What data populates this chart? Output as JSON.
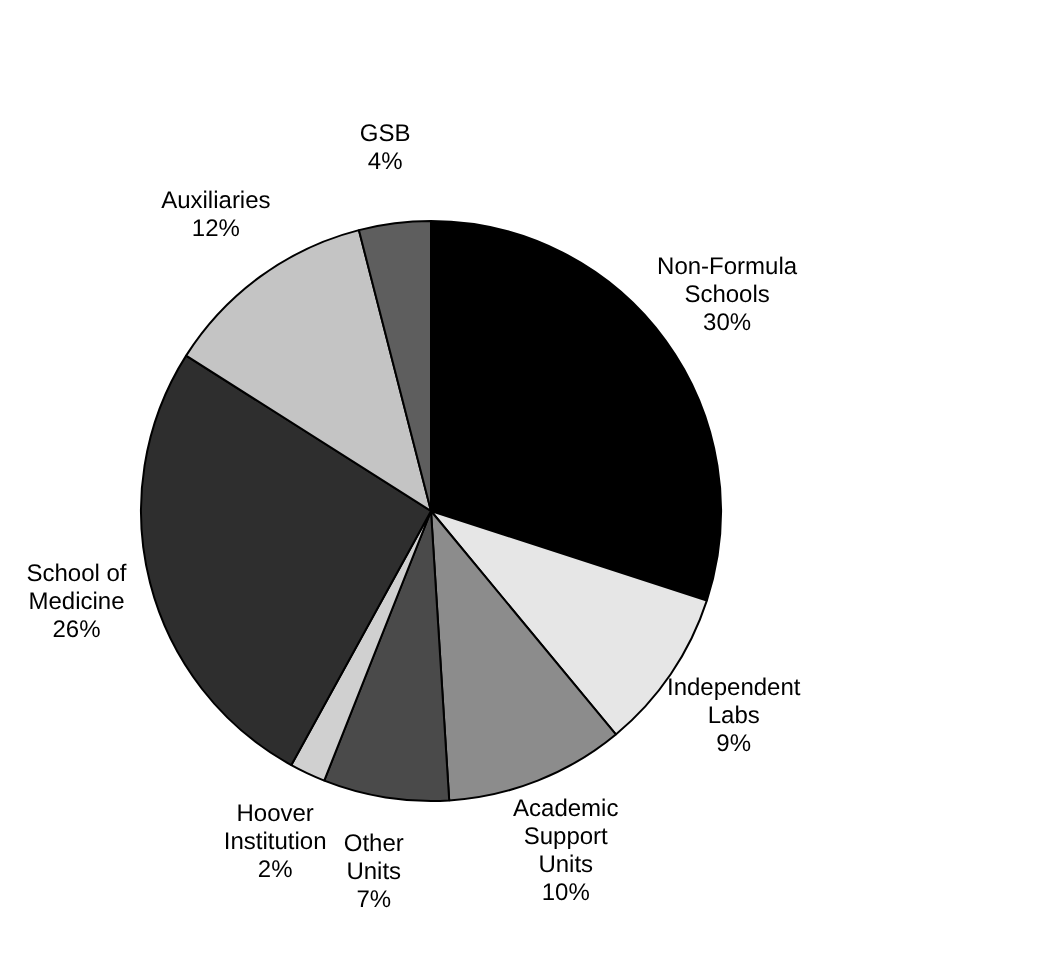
{
  "chart_data": {
    "type": "pie",
    "categories": [
      "Non-Formula Schools",
      "Independent Labs",
      "Academic Support Units",
      "Other Units",
      "Hoover Institution",
      "School of Medicine",
      "Auxiliaries",
      "GSB"
    ],
    "values": [
      30,
      9,
      10,
      7,
      2,
      26,
      12,
      4
    ],
    "value_labels": [
      "30%",
      "9%",
      "10%",
      "7%",
      "2%",
      "26%",
      "12%",
      "4%"
    ],
    "colors": [
      "#000000",
      "#e6e6e6",
      "#8c8c8c",
      "#4a4a4a",
      "#d0d0d0",
      "#2e2e2e",
      "#c4c4c4",
      "#5e5e5e"
    ]
  }
}
